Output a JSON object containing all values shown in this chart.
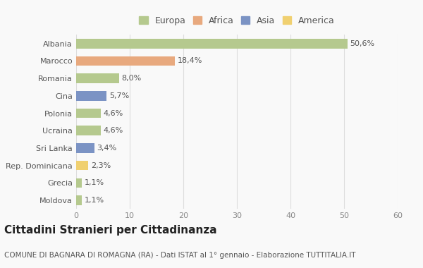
{
  "categories": [
    "Albania",
    "Marocco",
    "Romania",
    "Cina",
    "Polonia",
    "Ucraina",
    "Sri Lanka",
    "Rep. Dominicana",
    "Grecia",
    "Moldova"
  ],
  "values": [
    50.6,
    18.4,
    8.0,
    5.7,
    4.6,
    4.6,
    3.4,
    2.3,
    1.1,
    1.1
  ],
  "labels": [
    "50,6%",
    "18,4%",
    "8,0%",
    "5,7%",
    "4,6%",
    "4,6%",
    "3,4%",
    "2,3%",
    "1,1%",
    "1,1%"
  ],
  "continents": [
    "Europa",
    "Africa",
    "Europa",
    "Asia",
    "Europa",
    "Europa",
    "Asia",
    "America",
    "Europa",
    "Europa"
  ],
  "colors": {
    "Europa": "#b5c98e",
    "Africa": "#e8a97e",
    "Asia": "#7b93c4",
    "America": "#f0d070"
  },
  "legend_order": [
    "Europa",
    "Africa",
    "Asia",
    "America"
  ],
  "legend_colors": [
    "#b5c98e",
    "#e8a97e",
    "#7b93c4",
    "#f0d070"
  ],
  "xlim": [
    0,
    60
  ],
  "xticks": [
    0,
    10,
    20,
    30,
    40,
    50,
    60
  ],
  "title": "Cittadini Stranieri per Cittadinanza",
  "subtitle": "COMUNE DI BAGNARA DI ROMAGNA (RA) - Dati ISTAT al 1° gennaio - Elaborazione TUTTITALIA.IT",
  "background_color": "#f9f9f9",
  "bar_height": 0.55,
  "title_fontsize": 11,
  "subtitle_fontsize": 7.5,
  "label_fontsize": 8,
  "tick_fontsize": 8,
  "legend_fontsize": 9
}
